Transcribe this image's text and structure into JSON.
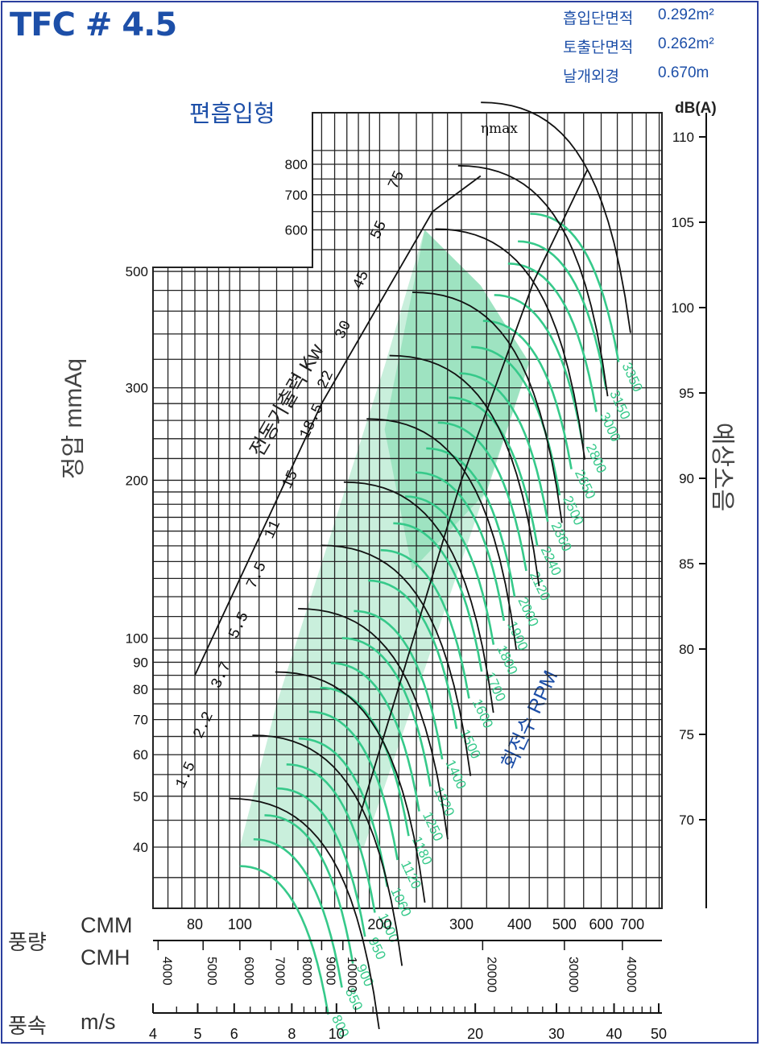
{
  "title": "TFC # 4.5",
  "specs": [
    {
      "label": "흡입단면적",
      "value": "0.292m²"
    },
    {
      "label": "토출단면적",
      "value": "0.262m²"
    },
    {
      "label": "날개외경",
      "value": "0.670m"
    }
  ],
  "subtype": "편흡입형",
  "colors": {
    "frame": "#2b3f9e",
    "blue_text": "#1d4fa8",
    "green": "#36c98a",
    "grid": "#222222",
    "fill": "#c9efdc"
  },
  "chart_data": {
    "type": "fan-performance",
    "x_scale": "log",
    "y_scale": "log",
    "ylabel": "정압 mmAq",
    "right_label": "예상소음",
    "right_unit": "dB(A)",
    "kw_label": "전동기출력 Kw",
    "rpm_label": "회전수 RPM",
    "eta_label": "ηmax",
    "y_ticks": [
      "40",
      "50",
      "60",
      "70",
      "80",
      "90",
      "100",
      "200",
      "300",
      "500",
      "600",
      "700",
      "800"
    ],
    "db_ticks": [
      "70",
      "75",
      "80",
      "85",
      "90",
      "95",
      "100",
      "105",
      "110"
    ],
    "cmm_label": "CMM",
    "cmh_label": "CMH",
    "flow_label": "풍량",
    "cmm_ticks": [
      "80",
      "100",
      "200",
      "300",
      "400",
      "500",
      "600",
      "700"
    ],
    "cmh_ticks": [
      "4000",
      "5000",
      "6000",
      "7000",
      "8000",
      "9000",
      "10000",
      "20000",
      "30000",
      "40000"
    ],
    "velocity_label": "풍속",
    "velocity_unit": "m/s",
    "velocity_ticks": [
      "4",
      "5",
      "6",
      "8",
      "10",
      "20",
      "30",
      "40",
      "50"
    ],
    "kw_values": [
      "1.5",
      "2.2",
      "3.7",
      "5.5",
      "7.5",
      "11",
      "15",
      "18.5",
      "22",
      "30",
      "45",
      "55",
      "75"
    ],
    "rpm_values": [
      "800",
      "850",
      "900",
      "950",
      "1000",
      "1060",
      "1120",
      "1180",
      "1250",
      "1320",
      "1400",
      "1500",
      "1600",
      "1700",
      "1800",
      "1900",
      "2000",
      "2120",
      "2240",
      "2360",
      "2500",
      "2650",
      "2800",
      "3000",
      "3150",
      "3350"
    ],
    "rpm_curves": [
      {
        "rpm": "800",
        "cmm_start": 100,
        "pa_start": 32
      },
      {
        "rpm": "850",
        "cmm_start": 107,
        "pa_start": 36
      },
      {
        "rpm": "900",
        "cmm_start": 113,
        "pa_start": 40
      },
      {
        "rpm": "950",
        "cmm_start": 120,
        "pa_start": 45
      },
      {
        "rpm": "1000",
        "cmm_start": 126,
        "pa_start": 50
      },
      {
        "rpm": "1060",
        "cmm_start": 134,
        "pa_start": 56
      },
      {
        "rpm": "1120",
        "cmm_start": 141,
        "pa_start": 63
      },
      {
        "rpm": "1180",
        "cmm_start": 149,
        "pa_start": 70
      },
      {
        "rpm": "1250",
        "cmm_start": 157,
        "pa_start": 78
      },
      {
        "rpm": "1320",
        "cmm_start": 166,
        "pa_start": 87
      },
      {
        "rpm": "1400",
        "cmm_start": 176,
        "pa_start": 98
      },
      {
        "rpm": "1500",
        "cmm_start": 189,
        "pa_start": 112
      },
      {
        "rpm": "1600",
        "cmm_start": 201,
        "pa_start": 128
      },
      {
        "rpm": "1700",
        "cmm_start": 214,
        "pa_start": 144
      },
      {
        "rpm": "1800",
        "cmm_start": 227,
        "pa_start": 162
      },
      {
        "rpm": "1900",
        "cmm_start": 239,
        "pa_start": 180
      },
      {
        "rpm": "2000",
        "cmm_start": 252,
        "pa_start": 200
      },
      {
        "rpm": "2120",
        "cmm_start": 267,
        "pa_start": 224
      },
      {
        "rpm": "2240",
        "cmm_start": 282,
        "pa_start": 250
      },
      {
        "rpm": "2360",
        "cmm_start": 297,
        "pa_start": 278
      },
      {
        "rpm": "2500",
        "cmm_start": 315,
        "pa_start": 312
      },
      {
        "rpm": "2650",
        "cmm_start": 334,
        "pa_start": 350
      },
      {
        "rpm": "2800",
        "cmm_start": 353,
        "pa_start": 392
      },
      {
        "rpm": "3000",
        "cmm_start": 378,
        "pa_start": 450
      },
      {
        "rpm": "3150",
        "cmm_start": 397,
        "pa_start": 496
      },
      {
        "rpm": "3350",
        "cmm_start": 422,
        "pa_start": 560
      }
    ]
  }
}
